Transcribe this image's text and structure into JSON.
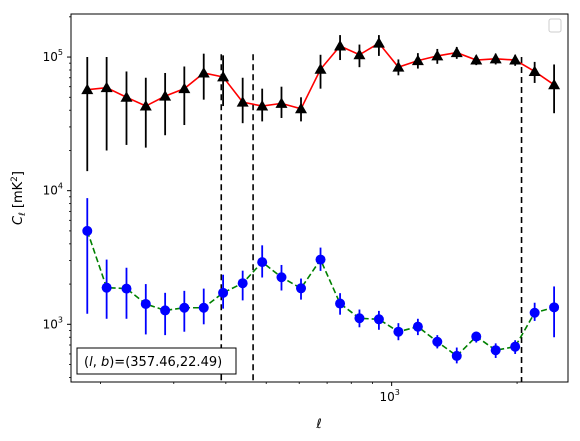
{
  "chart_data": {
    "type": "line",
    "title": "",
    "xlabel": "ℓ",
    "ylabel": "C_ℓ [mK²]",
    "xscale": "log",
    "yscale": "log",
    "xlim": [
      170,
      2650
    ],
    "ylim": [
      370,
      210000
    ],
    "grid": false,
    "legend": {
      "placement": "top-right",
      "entries": []
    },
    "x_ticks": [
      {
        "value": 1000,
        "label": "10",
        "exp": "3"
      }
    ],
    "y_ticks": [
      {
        "value": 1000,
        "label": "10",
        "exp": "3"
      },
      {
        "value": 10000,
        "label": "10",
        "exp": "4"
      },
      {
        "value": 100000,
        "label": "10",
        "exp": "5"
      }
    ],
    "annotation": "(l, b)=(357.46,22.49)",
    "vlines": [
      {
        "x": 390,
        "style": "dashed",
        "color": "#000000",
        "y_top": 105000
      },
      {
        "x": 465,
        "style": "dashed",
        "color": "#000000",
        "y_top": 105000
      },
      {
        "x": 2050,
        "style": "dashed",
        "color": "#000000",
        "y_top": 100000
      }
    ],
    "series": [
      {
        "color": "#ff0000",
        "line_style": "solid",
        "marker": "triangle",
        "marker_color": "#000000",
        "errorbar_color": "#000000",
        "x": [
          186,
          207,
          231,
          257,
          286,
          318,
          354,
          394,
          439,
          489,
          544,
          606,
          675,
          752,
          837,
          932,
          1038,
          1156,
          1287,
          1433,
          1596,
          1777,
          1979,
          2204,
          2454
        ],
        "y": [
          57000,
          59000,
          50000,
          43000,
          51000,
          58000,
          76000,
          71000,
          46000,
          43000,
          45000,
          41000,
          81000,
          121000,
          104000,
          127000,
          84000,
          94000,
          102000,
          108000,
          95000,
          97000,
          95000,
          78000,
          62000
        ],
        "y_lo": [
          14000,
          20000,
          22000,
          21000,
          26000,
          31000,
          48000,
          43000,
          32000,
          33000,
          35000,
          33000,
          58000,
          95000,
          84000,
          102000,
          73000,
          82000,
          89000,
          97000,
          87000,
          88000,
          86000,
          64000,
          38000
        ],
        "y_hi": [
          100000,
          100000,
          78000,
          70000,
          76000,
          85000,
          106000,
          103000,
          70000,
          58000,
          60000,
          50000,
          104000,
          146000,
          124000,
          146000,
          96000,
          107000,
          115000,
          119000,
          103000,
          106000,
          104000,
          92000,
          88000
        ]
      },
      {
        "color": "#008000",
        "line_style": "dashed",
        "marker": "circle",
        "marker_color": "#0000ff",
        "errorbar_color": "#0000ff",
        "x": [
          186,
          207,
          231,
          257,
          286,
          318,
          354,
          394,
          439,
          489,
          544,
          606,
          675,
          752,
          837,
          932,
          1038,
          1156,
          1287,
          1433,
          1596,
          1777,
          1979,
          2204,
          2454
        ],
        "y": [
          5000,
          1880,
          1850,
          1420,
          1270,
          1330,
          1330,
          1720,
          2030,
          2920,
          2250,
          1860,
          3050,
          1430,
          1110,
          1090,
          880,
          960,
          740,
          580,
          810,
          640,
          680,
          1220,
          1340
        ],
        "y_lo": [
          1200,
          1100,
          1100,
          840,
          830,
          880,
          1000,
          1310,
          1510,
          2240,
          1790,
          1530,
          2510,
          1180,
          950,
          910,
          760,
          830,
          660,
          510,
          730,
          560,
          600,
          1060,
          800
        ],
        "y_hi": [
          8800,
          3050,
          2650,
          2000,
          1720,
          1780,
          1850,
          2350,
          2520,
          3900,
          2780,
          2200,
          3750,
          1710,
          1290,
          1260,
          1020,
          1100,
          830,
          670,
          880,
          720,
          760,
          1450,
          1920
        ]
      }
    ]
  }
}
